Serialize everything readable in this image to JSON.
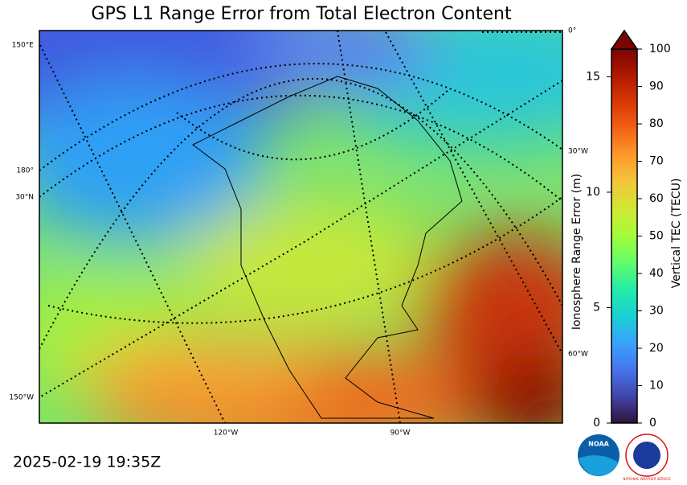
{
  "title": "GPS L1 Range Error from Total Electron Content",
  "timestamp": "2025-02-19 19:35Z",
  "map": {
    "graticule_labels": [
      "150°E",
      "180°",
      "30°N",
      "150°W",
      "0°",
      "30°W",
      "60°W",
      "120°W",
      "90°W"
    ]
  },
  "colorbar": {
    "label": "Vertical TEC (TECU)",
    "ylim": [
      0,
      100
    ],
    "ticks": [
      0,
      10,
      20,
      30,
      40,
      50,
      60,
      70,
      80,
      90,
      100
    ],
    "colors": [
      "#30123b",
      "#4145ab",
      "#4675ed",
      "#39a2fc",
      "#1bcfd4",
      "#24eca6",
      "#61fc6c",
      "#a4fc3b",
      "#d1e834",
      "#f3c63a",
      "#fe9b2d",
      "#f36315",
      "#d93806",
      "#b11901",
      "#7a0402"
    ],
    "extend_color": "#7a0402"
  },
  "range_axis": {
    "label": "Ionosphere Range Error (m)",
    "ylim": [
      0,
      16.2
    ],
    "ticks": [
      0,
      5,
      10,
      15
    ]
  },
  "logos": [
    "NOAA",
    "NATIONAL WEATHER SERVICE"
  ]
}
